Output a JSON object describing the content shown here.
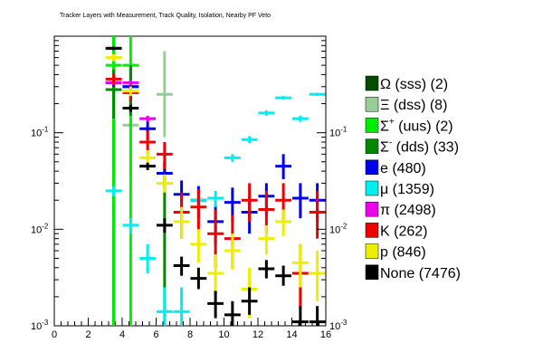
{
  "chart_data": {
    "type": "scatter",
    "title": "Tracker Layers with Measurement, Track Quality, Isolation, Nearby PF Veto",
    "xlabel": "",
    "ylabel": "",
    "xlim": [
      0,
      16
    ],
    "ylim": [
      0.001,
      1
    ],
    "log_y": true,
    "x_ticks": [
      "0",
      "2",
      "4",
      "6",
      "8",
      "10",
      "12",
      "14",
      "16"
    ],
    "y_ticks": [
      {
        "base": "10",
        "exp": "-3"
      },
      {
        "base": "10",
        "exp": "-2"
      },
      {
        "base": "10",
        "exp": "-1"
      }
    ],
    "legend_position": "right",
    "series": [
      {
        "name": "Ω (sss) (2)",
        "sym": "Ω",
        "sup": "",
        "rest": " (sss) (2)",
        "color": "#004d00",
        "points": [
          {
            "x": 3.5,
            "y": 0.75,
            "lo": 0.0008,
            "hi": 1.0
          }
        ]
      },
      {
        "name": "Ξ (dss) (8)",
        "sym": "Ξ",
        "sup": "",
        "rest": " (dss) (8)",
        "color": "#99cc99",
        "points": [
          {
            "x": 4.5,
            "y": 0.12,
            "lo": 0.035,
            "hi": 0.35
          },
          {
            "x": 6.5,
            "y": 0.25,
            "lo": 0.09,
            "hi": 0.7
          }
        ]
      },
      {
        "name": "Σ+ (uus) (2)",
        "sym": "Σ",
        "sup": "+",
        "rest": " (uus) (2)",
        "color": "#00ee00",
        "points": [
          {
            "x": 3.5,
            "y": 0.5,
            "lo": 0.0008,
            "hi": 1.0
          },
          {
            "x": 4.5,
            "y": 0.5,
            "lo": 0.0008,
            "hi": 1.0
          }
        ]
      },
      {
        "name": "Σ- (dds) (33)",
        "sym": "Σ",
        "sup": "-",
        "rest": " (dds) (33)",
        "color": "#008800",
        "points": [
          {
            "x": 3.5,
            "y": 0.28,
            "lo": 0.14,
            "hi": 0.45
          },
          {
            "x": 4.5,
            "y": 0.3,
            "lo": 0.15,
            "hi": 0.5
          },
          {
            "x": 6.5,
            "y": 0.03,
            "lo": 0.0008,
            "hi": 0.05
          }
        ]
      },
      {
        "name": "e (480)",
        "sym": "e",
        "sup": "",
        "rest": " (480)",
        "color": "#0000ee",
        "points": [
          {
            "x": 3.5,
            "y": 0.33,
            "lo": 0.3,
            "hi": 0.37
          },
          {
            "x": 4.5,
            "y": 0.3,
            "lo": 0.26,
            "hi": 0.34
          },
          {
            "x": 5.5,
            "y": 0.11,
            "lo": 0.085,
            "hi": 0.14
          },
          {
            "x": 6.5,
            "y": 0.038,
            "lo": 0.028,
            "hi": 0.05
          },
          {
            "x": 7.5,
            "y": 0.023,
            "lo": 0.015,
            "hi": 0.032
          },
          {
            "x": 8.5,
            "y": 0.02,
            "lo": 0.013,
            "hi": 0.028
          },
          {
            "x": 9.5,
            "y": 0.012,
            "lo": 0.007,
            "hi": 0.018
          },
          {
            "x": 10.5,
            "y": 0.019,
            "lo": 0.012,
            "hi": 0.027
          },
          {
            "x": 11.5,
            "y": 0.015,
            "lo": 0.009,
            "hi": 0.022
          },
          {
            "x": 12.5,
            "y": 0.022,
            "lo": 0.014,
            "hi": 0.03
          },
          {
            "x": 13.5,
            "y": 0.045,
            "lo": 0.033,
            "hi": 0.06
          },
          {
            "x": 14.5,
            "y": 0.021,
            "lo": 0.013,
            "hi": 0.03
          },
          {
            "x": 15.5,
            "y": 0.02,
            "lo": 0.012,
            "hi": 0.03
          }
        ]
      },
      {
        "name": "μ (1359)",
        "sym": "μ",
        "sup": "",
        "rest": " (1359)",
        "color": "#00eeee",
        "points": [
          {
            "x": 3.5,
            "y": 0.025,
            "lo": 0.022,
            "hi": 0.028
          },
          {
            "x": 4.5,
            "y": 0.011,
            "lo": 0.009,
            "hi": 0.013
          },
          {
            "x": 5.5,
            "y": 0.005,
            "lo": 0.0035,
            "hi": 0.007
          },
          {
            "x": 6.5,
            "y": 0.0014,
            "lo": 0.0008,
            "hi": 0.0025
          },
          {
            "x": 7.5,
            "y": 0.0014,
            "lo": 0.0008,
            "hi": 0.0025
          },
          {
            "x": 8.5,
            "y": 0.02,
            "lo": 0.016,
            "hi": 0.024
          },
          {
            "x": 9.5,
            "y": 0.021,
            "lo": 0.017,
            "hi": 0.025
          },
          {
            "x": 10.5,
            "y": 0.055,
            "lo": 0.05,
            "hi": 0.06
          },
          {
            "x": 11.5,
            "y": 0.085,
            "lo": 0.078,
            "hi": 0.092
          },
          {
            "x": 12.5,
            "y": 0.16,
            "lo": 0.15,
            "hi": 0.17
          },
          {
            "x": 13.5,
            "y": 0.23,
            "lo": 0.22,
            "hi": 0.24
          },
          {
            "x": 14.5,
            "y": 0.14,
            "lo": 0.13,
            "hi": 0.15
          },
          {
            "x": 15.5,
            "y": 0.25,
            "lo": 0.24,
            "hi": 0.26
          }
        ]
      },
      {
        "name": "π (2498)",
        "sym": "π",
        "sup": "",
        "rest": " (2498)",
        "color": "#ee00ee",
        "points": [
          {
            "x": 3.5,
            "y": 0.33,
            "lo": 0.31,
            "hi": 0.35
          },
          {
            "x": 4.5,
            "y": 0.33,
            "lo": 0.31,
            "hi": 0.35
          },
          {
            "x": 5.5,
            "y": 0.14,
            "lo": 0.13,
            "hi": 0.15
          }
        ]
      },
      {
        "name": "K (262)",
        "sym": "K",
        "sup": "",
        "rest": " (262)",
        "color": "#ee0000",
        "points": [
          {
            "x": 3.5,
            "y": 0.36,
            "lo": 0.31,
            "hi": 0.41
          },
          {
            "x": 4.5,
            "y": 0.26,
            "lo": 0.21,
            "hi": 0.31
          },
          {
            "x": 5.5,
            "y": 0.08,
            "lo": 0.058,
            "hi": 0.105
          },
          {
            "x": 6.5,
            "y": 0.06,
            "lo": 0.042,
            "hi": 0.08
          },
          {
            "x": 7.5,
            "y": 0.015,
            "lo": 0.008,
            "hi": 0.024
          },
          {
            "x": 8.5,
            "y": 0.017,
            "lo": 0.01,
            "hi": 0.026
          },
          {
            "x": 9.5,
            "y": 0.009,
            "lo": 0.004,
            "hi": 0.016
          },
          {
            "x": 10.5,
            "y": 0.008,
            "lo": 0.004,
            "hi": 0.014
          },
          {
            "x": 11.5,
            "y": 0.02,
            "lo": 0.012,
            "hi": 0.03
          },
          {
            "x": 12.5,
            "y": 0.016,
            "lo": 0.009,
            "hi": 0.025
          },
          {
            "x": 13.5,
            "y": 0.02,
            "lo": 0.012,
            "hi": 0.03
          },
          {
            "x": 14.5,
            "y": 0.0035,
            "lo": 0.0015,
            "hi": 0.007
          },
          {
            "x": 15.5,
            "y": 0.015,
            "lo": 0.008,
            "hi": 0.025
          }
        ]
      },
      {
        "name": "p (846)",
        "sym": "p",
        "sup": "",
        "rest": " (846)",
        "color": "#eeee00",
        "points": [
          {
            "x": 3.5,
            "y": 0.6,
            "lo": 0.55,
            "hi": 0.65
          },
          {
            "x": 4.5,
            "y": 0.27,
            "lo": 0.24,
            "hi": 0.3
          },
          {
            "x": 5.5,
            "y": 0.055,
            "lo": 0.045,
            "hi": 0.066
          },
          {
            "x": 6.5,
            "y": 0.03,
            "lo": 0.024,
            "hi": 0.037
          },
          {
            "x": 7.5,
            "y": 0.012,
            "lo": 0.008,
            "hi": 0.017
          },
          {
            "x": 8.5,
            "y": 0.007,
            "lo": 0.0045,
            "hi": 0.01
          },
          {
            "x": 9.5,
            "y": 0.0035,
            "lo": 0.002,
            "hi": 0.0055
          },
          {
            "x": 10.5,
            "y": 0.006,
            "lo": 0.0038,
            "hi": 0.009
          },
          {
            "x": 11.5,
            "y": 0.0024,
            "lo": 0.0012,
            "hi": 0.004
          },
          {
            "x": 12.5,
            "y": 0.008,
            "lo": 0.0055,
            "hi": 0.011
          },
          {
            "x": 13.5,
            "y": 0.012,
            "lo": 0.0085,
            "hi": 0.016
          },
          {
            "x": 14.5,
            "y": 0.0045,
            "lo": 0.0025,
            "hi": 0.007
          },
          {
            "x": 15.5,
            "y": 0.0035,
            "lo": 0.0018,
            "hi": 0.006
          }
        ]
      },
      {
        "name": "None (7476)",
        "sym": "None",
        "sup": "",
        "rest": " (7476)",
        "color": "#000000",
        "points": [
          {
            "x": 3.5,
            "y": 0.75,
            "lo": 0.72,
            "hi": 0.78
          },
          {
            "x": 4.5,
            "y": 0.18,
            "lo": 0.165,
            "hi": 0.195
          },
          {
            "x": 5.5,
            "y": 0.045,
            "lo": 0.041,
            "hi": 0.049
          },
          {
            "x": 6.5,
            "y": 0.011,
            "lo": 0.0092,
            "hi": 0.013
          },
          {
            "x": 7.5,
            "y": 0.0042,
            "lo": 0.0033,
            "hi": 0.0052
          },
          {
            "x": 8.5,
            "y": 0.0031,
            "lo": 0.0024,
            "hi": 0.004
          },
          {
            "x": 9.5,
            "y": 0.0017,
            "lo": 0.0012,
            "hi": 0.0023
          },
          {
            "x": 10.5,
            "y": 0.0013,
            "lo": 0.0009,
            "hi": 0.0018
          },
          {
            "x": 11.5,
            "y": 0.0018,
            "lo": 0.0013,
            "hi": 0.0025
          },
          {
            "x": 12.5,
            "y": 0.0039,
            "lo": 0.0031,
            "hi": 0.0048
          },
          {
            "x": 13.5,
            "y": 0.0033,
            "lo": 0.0026,
            "hi": 0.0042
          },
          {
            "x": 14.5,
            "y": 0.0011,
            "lo": 0.0008,
            "hi": 0.0016
          },
          {
            "x": 15.5,
            "y": 0.0011,
            "lo": 0.0008,
            "hi": 0.0016
          }
        ]
      }
    ]
  }
}
